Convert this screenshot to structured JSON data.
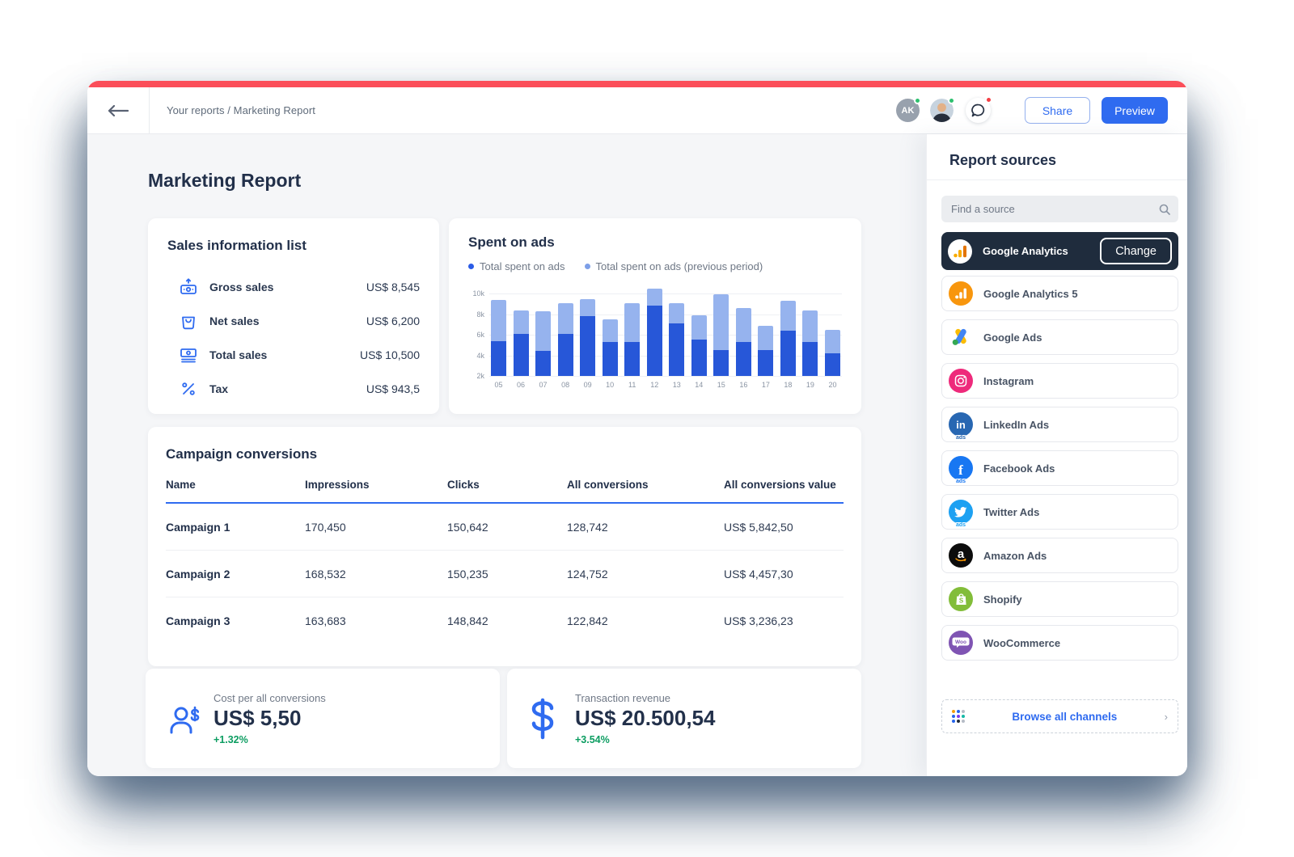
{
  "colors": {
    "accent": "#2f6bf0",
    "red_strip": "#fb4e59",
    "positive_green": "#0c9d61",
    "bar_current": "#2757d8",
    "bar_previous": "#96b3ee",
    "selected_source_bg": "#1f2c3d"
  },
  "topbar": {
    "breadcrumb": "Your reports / Marketing Report",
    "avatar_initials": "AK",
    "share_label": "Share",
    "preview_label": "Preview"
  },
  "report": {
    "title": "Marketing Report"
  },
  "sales_info": {
    "title": "Sales information list",
    "rows": [
      {
        "icon": "gross-sales-icon",
        "label": "Gross sales",
        "value": "US$ 8,545"
      },
      {
        "icon": "net-sales-icon",
        "label": "Net sales",
        "value": "US$ 6,200"
      },
      {
        "icon": "total-sales-icon",
        "label": "Total sales",
        "value": "US$ 10,500"
      },
      {
        "icon": "tax-icon",
        "label": "Tax",
        "value": "US$ 943,5"
      }
    ]
  },
  "spent_on_ads": {
    "title": "Spent on ads",
    "legend": [
      "Total spent on ads",
      "Total spent on ads (previous period)"
    ]
  },
  "chart_data": {
    "type": "bar",
    "stacked": true,
    "title": "Spent on ads",
    "categories": [
      "05",
      "06",
      "07",
      "08",
      "09",
      "10",
      "11",
      "12",
      "13",
      "14",
      "15",
      "16",
      "17",
      "18",
      "19",
      "20"
    ],
    "series": [
      {
        "name": "Total spent on ads",
        "color": "#2757d8",
        "values": [
          5400,
          6100,
          4400,
          6100,
          7800,
          5300,
          5300,
          8800,
          7100,
          5500,
          4500,
          5300,
          4500,
          6400,
          5300,
          4200
        ]
      },
      {
        "name": "Total spent on ads (previous period)",
        "color": "#96b3ee",
        "stacked_increment": true,
        "values": [
          4000,
          2300,
          3900,
          3000,
          1700,
          2200,
          3800,
          1700,
          2000,
          2400,
          5400,
          3300,
          2400,
          2900,
          3100,
          2300
        ]
      }
    ],
    "yticks": [
      2000,
      4000,
      6000,
      8000,
      10000
    ],
    "ytick_labels": [
      "2k",
      "4k",
      "6k",
      "8k",
      "10k"
    ],
    "ymin": 2000,
    "ymax": 10800,
    "grid": true,
    "legend_position": "top"
  },
  "campaign_table": {
    "title": "Campaign conversions",
    "headers": [
      "Name",
      "Impressions",
      "Clicks",
      "All conversions",
      "All conversions value"
    ],
    "rows": [
      [
        "Campaign 1",
        "170,450",
        "150,642",
        "128,742",
        "US$ 5,842,50"
      ],
      [
        "Campaign 2",
        "168,532",
        "150,235",
        "124,752",
        "US$ 4,457,30"
      ],
      [
        "Campaign 3",
        "163,683",
        "148,842",
        "122,842",
        "US$ 3,236,23"
      ]
    ]
  },
  "stats": [
    {
      "icon": "cost-per-conversion-icon",
      "label": "Cost per all conversions",
      "value": "US$ 5,50",
      "change": "+1.32%"
    },
    {
      "icon": "dollar-icon",
      "label": "Transaction revenue",
      "value": "US$ 20.500,54",
      "change": "+3.54%"
    }
  ],
  "sources": {
    "title": "Report sources",
    "search_placeholder": "Find a source",
    "selected": {
      "name": "Google Analytics",
      "action_label": "Change"
    },
    "items": [
      "Google Analytics 5",
      "Google Ads",
      "Instagram",
      "LinkedIn Ads",
      "Facebook Ads",
      "Twitter Ads",
      "Amazon Ads",
      "Shopify",
      "WooCommerce"
    ],
    "browse_label": "Browse all channels"
  }
}
